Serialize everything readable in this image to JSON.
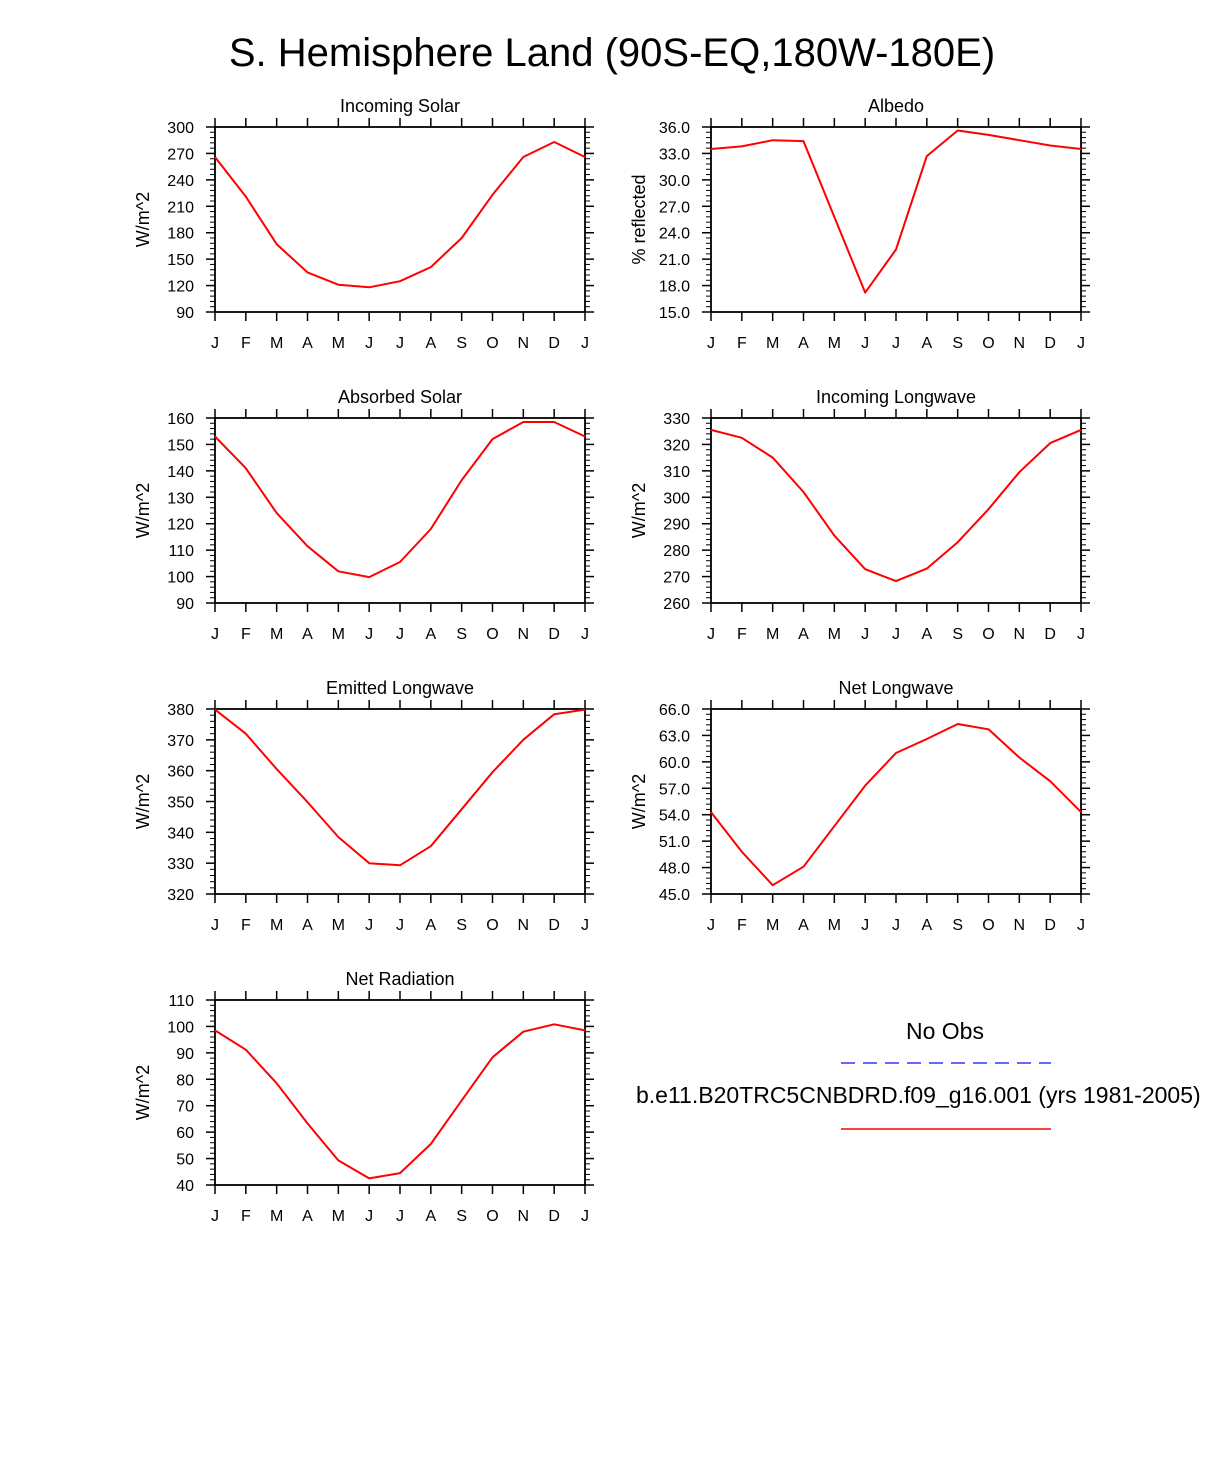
{
  "figure": {
    "title": "S. Hemisphere Land (90S-EQ,180W-180E)"
  },
  "months": [
    "J",
    "F",
    "M",
    "A",
    "M",
    "J",
    "J",
    "A",
    "S",
    "O",
    "N",
    "D",
    "J"
  ],
  "chart_data": [
    {
      "type": "line",
      "title": "Incoming Solar",
      "ylabel": "W/m^2",
      "xlabel": "",
      "ylim": [
        90,
        300
      ],
      "yticks": [
        90,
        120,
        150,
        180,
        210,
        240,
        270,
        300
      ],
      "yticklabels": [
        "90",
        "120",
        "150",
        "180",
        "210",
        "240",
        "270",
        "300"
      ],
      "xticklabels": [
        "J",
        "F",
        "M",
        "A",
        "M",
        "J",
        "J",
        "A",
        "S",
        "O",
        "N",
        "D",
        "J"
      ],
      "series": [
        {
          "name": "b.e11.B20TRC5CNBDRD.f09_g16.001 (yrs 1981-2005)",
          "color": "#ff0000",
          "values": [
            266,
            221,
            167,
            135,
            121,
            118,
            125,
            141,
            174,
            223,
            266,
            283,
            266
          ]
        }
      ]
    },
    {
      "type": "line",
      "title": "Albedo",
      "ylabel": "% reflected",
      "xlabel": "",
      "ylim": [
        15,
        36
      ],
      "yticks": [
        15,
        18,
        21,
        24,
        27,
        30,
        33,
        36
      ],
      "yticklabels": [
        "15.0",
        "18.0",
        "21.0",
        "24.0",
        "27.0",
        "30.0",
        "33.0",
        "36.0"
      ],
      "xticklabels": [
        "J",
        "F",
        "M",
        "A",
        "M",
        "J",
        "J",
        "A",
        "S",
        "O",
        "N",
        "D",
        "J"
      ],
      "series": [
        {
          "name": "b.e11.B20TRC5CNBDRD.f09_g16.001 (yrs 1981-2005)",
          "color": "#ff0000",
          "values": [
            33.5,
            33.8,
            34.5,
            34.4,
            25.8,
            17.2,
            22.1,
            32.7,
            35.6,
            35.1,
            34.5,
            33.9,
            33.5
          ]
        }
      ]
    },
    {
      "type": "line",
      "title": "Absorbed Solar",
      "ylabel": "W/m^2",
      "xlabel": "",
      "ylim": [
        90,
        160
      ],
      "yticks": [
        90,
        100,
        110,
        120,
        130,
        140,
        150,
        160
      ],
      "yticklabels": [
        "90",
        "100",
        "110",
        "120",
        "130",
        "140",
        "150",
        "160"
      ],
      "xticklabels": [
        "J",
        "F",
        "M",
        "A",
        "M",
        "J",
        "J",
        "A",
        "S",
        "O",
        "N",
        "D",
        "J"
      ],
      "series": [
        {
          "name": "b.e11.B20TRC5CNBDRD.f09_g16.001 (yrs 1981-2005)",
          "color": "#ff0000",
          "values": [
            153,
            141,
            124,
            111.5,
            102,
            99.8,
            105.5,
            118,
            136.5,
            152,
            158.5,
            158.5,
            153
          ]
        }
      ]
    },
    {
      "type": "line",
      "title": "Incoming Longwave",
      "ylabel": "W/m^2",
      "xlabel": "",
      "ylim": [
        260,
        330
      ],
      "yticks": [
        260,
        270,
        280,
        290,
        300,
        310,
        320,
        330
      ],
      "yticklabels": [
        "260",
        "270",
        "280",
        "290",
        "300",
        "310",
        "320",
        "330"
      ],
      "xticklabels": [
        "J",
        "F",
        "M",
        "A",
        "M",
        "J",
        "J",
        "A",
        "S",
        "O",
        "N",
        "D",
        "J"
      ],
      "series": [
        {
          "name": "b.e11.B20TRC5CNBDRD.f09_g16.001 (yrs 1981-2005)",
          "color": "#ff0000",
          "values": [
            325.5,
            322.5,
            315,
            302,
            285.5,
            272.8,
            268.3,
            273,
            283,
            295.5,
            309.5,
            320.5,
            325.5
          ]
        }
      ]
    },
    {
      "type": "line",
      "title": "Emitted Longwave",
      "ylabel": "W/m^2",
      "xlabel": "",
      "ylim": [
        320,
        380
      ],
      "yticks": [
        320,
        330,
        340,
        350,
        360,
        370,
        380
      ],
      "yticklabels": [
        "320",
        "330",
        "340",
        "350",
        "360",
        "370",
        "380"
      ],
      "xticklabels": [
        "J",
        "F",
        "M",
        "A",
        "M",
        "J",
        "J",
        "A",
        "S",
        "O",
        "N",
        "D",
        "J"
      ],
      "series": [
        {
          "name": "b.e11.B20TRC5CNBDRD.f09_g16.001 (yrs 1981-2005)",
          "color": "#ff0000",
          "values": [
            379.8,
            372,
            360.5,
            349.8,
            338.5,
            330,
            329.3,
            335.5,
            347.5,
            359.5,
            370,
            378.3,
            379.8
          ]
        }
      ]
    },
    {
      "type": "line",
      "title": "Net Longwave",
      "ylabel": "W/m^2",
      "xlabel": "",
      "ylim": [
        45,
        66
      ],
      "yticks": [
        45,
        48,
        51,
        54,
        57,
        60,
        63,
        66
      ],
      "yticklabels": [
        "45.0",
        "48.0",
        "51.0",
        "54.0",
        "57.0",
        "60.0",
        "63.0",
        "66.0"
      ],
      "xticklabels": [
        "J",
        "F",
        "M",
        "A",
        "M",
        "J",
        "J",
        "A",
        "S",
        "O",
        "N",
        "D",
        "J"
      ],
      "series": [
        {
          "name": "b.e11.B20TRC5CNBDRD.f09_g16.001 (yrs 1981-2005)",
          "color": "#ff0000",
          "values": [
            54.3,
            49.8,
            46.0,
            48.1,
            52.7,
            57.3,
            61.0,
            62.6,
            64.3,
            63.7,
            60.5,
            57.8,
            54.3
          ]
        }
      ]
    },
    {
      "type": "line",
      "title": "Net Radiation",
      "ylabel": "W/m^2",
      "xlabel": "",
      "ylim": [
        40,
        110
      ],
      "yticks": [
        40,
        50,
        60,
        70,
        80,
        90,
        100,
        110
      ],
      "yticklabels": [
        "40",
        "50",
        "60",
        "70",
        "80",
        "90",
        "100",
        "110"
      ],
      "xticklabels": [
        "J",
        "F",
        "M",
        "A",
        "M",
        "J",
        "J",
        "A",
        "S",
        "O",
        "N",
        "D",
        "J"
      ],
      "series": [
        {
          "name": "b.e11.B20TRC5CNBDRD.f09_g16.001 (yrs 1981-2005)",
          "color": "#ff0000",
          "values": [
            98.5,
            91.2,
            78.5,
            63.3,
            49.3,
            42.5,
            44.5,
            55.5,
            72,
            88.3,
            98,
            100.8,
            98.5
          ]
        }
      ]
    }
  ],
  "legend": {
    "obs_label": "No Obs",
    "obs_color": "#3333ff",
    "model_label": "b.e11.B20TRC5CNBDRD.f09_g16.001 (yrs 1981-2005)",
    "model_color": "#ff0000"
  }
}
